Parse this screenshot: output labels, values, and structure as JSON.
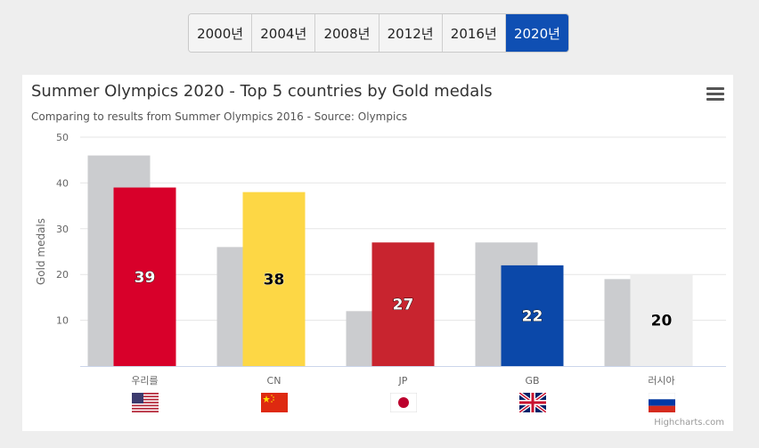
{
  "year_tabs": [
    {
      "label": "2000년",
      "active": false
    },
    {
      "label": "2004년",
      "active": false
    },
    {
      "label": "2008년",
      "active": false
    },
    {
      "label": "2012년",
      "active": false
    },
    {
      "label": "2016년",
      "active": false
    },
    {
      "label": "2020년",
      "active": true
    }
  ],
  "menu_icon": "hamburger-menu-icon",
  "credits": "Highcharts.com",
  "chart_data": {
    "type": "bar",
    "title": "Summer Olympics 2020 - Top 5 countries by Gold medals",
    "subtitle": "Comparing to results from Summer Olympics 2016 - Source: Olympics",
    "xlabel": "",
    "ylabel": "Gold medals",
    "ylim": [
      0,
      50
    ],
    "yticks": [
      10,
      20,
      30,
      40,
      50
    ],
    "grid": true,
    "categories": [
      "우리를",
      "CN",
      "JP",
      "GB",
      "러시아"
    ],
    "flags": [
      "us-flag-icon",
      "china-flag-icon",
      "japan-flag-icon",
      "uk-flag-icon",
      "russia-flag-icon"
    ],
    "series": [
      {
        "values": [
          46,
          26,
          12,
          27,
          19
        ],
        "color": "#cbcccf"
      },
      {
        "values": [
          39,
          38,
          27,
          22,
          20
        ],
        "colors": [
          "#d8002a",
          "#fdd745",
          "#c8242f",
          "#0b48a9",
          "#eeeeee"
        ]
      }
    ],
    "data_labels": [
      "39",
      "38",
      "27",
      "22",
      "20"
    ]
  }
}
